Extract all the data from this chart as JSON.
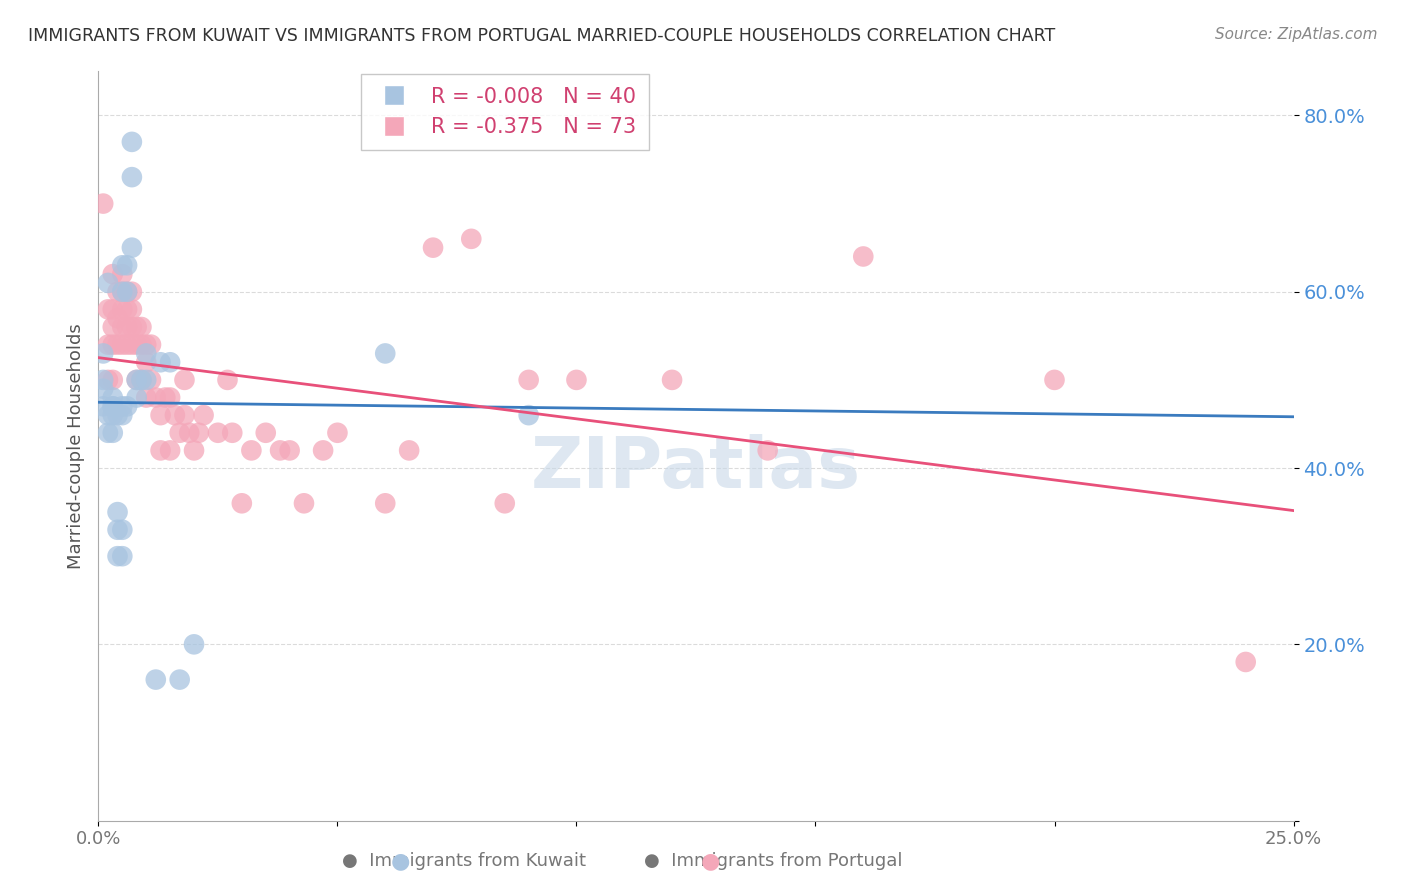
{
  "title": "IMMIGRANTS FROM KUWAIT VS IMMIGRANTS FROM PORTUGAL MARRIED-COUPLE HOUSEHOLDS CORRELATION CHART",
  "source": "Source: ZipAtlas.com",
  "ylabel": "Married-couple Households",
  "xlim": [
    0.0,
    0.25
  ],
  "ylim": [
    0.0,
    0.85
  ],
  "yticks": [
    0.0,
    0.2,
    0.4,
    0.6,
    0.8
  ],
  "ytick_labels": [
    "",
    "20.0%",
    "40.0%",
    "60.0%",
    "80.0%"
  ],
  "xticks": [
    0.0,
    0.05,
    0.1,
    0.15,
    0.2,
    0.25
  ],
  "xtick_labels": [
    "0.0%",
    "",
    "",
    "",
    "",
    "25.0%"
  ],
  "kuwait_R": -0.008,
  "kuwait_N": 40,
  "portugal_R": -0.375,
  "portugal_N": 73,
  "kuwait_color": "#a8c4e0",
  "portugal_color": "#f4a7b9",
  "kuwait_line_color": "#3a7bbf",
  "portugal_line_color": "#e8507a",
  "grid_color": "#cccccc",
  "background_color": "#ffffff",
  "watermark_text": "ZIPatlas",
  "watermark_color": "#c8d8e8",
  "kuwait_x": [
    0.001,
    0.001,
    0.001,
    0.001,
    0.002,
    0.002,
    0.002,
    0.003,
    0.003,
    0.003,
    0.003,
    0.003,
    0.004,
    0.004,
    0.004,
    0.004,
    0.005,
    0.005,
    0.005,
    0.005,
    0.005,
    0.005,
    0.006,
    0.006,
    0.006,
    0.007,
    0.007,
    0.007,
    0.008,
    0.008,
    0.009,
    0.01,
    0.01,
    0.012,
    0.013,
    0.015,
    0.017,
    0.02,
    0.06,
    0.09
  ],
  "kuwait_y": [
    0.47,
    0.49,
    0.5,
    0.53,
    0.44,
    0.46,
    0.61,
    0.44,
    0.46,
    0.47,
    0.47,
    0.48,
    0.3,
    0.33,
    0.35,
    0.46,
    0.3,
    0.33,
    0.46,
    0.47,
    0.6,
    0.63,
    0.47,
    0.6,
    0.63,
    0.65,
    0.73,
    0.77,
    0.48,
    0.5,
    0.5,
    0.5,
    0.53,
    0.16,
    0.52,
    0.52,
    0.16,
    0.2,
    0.53,
    0.46
  ],
  "portugal_x": [
    0.001,
    0.002,
    0.002,
    0.002,
    0.003,
    0.003,
    0.003,
    0.003,
    0.003,
    0.004,
    0.004,
    0.004,
    0.005,
    0.005,
    0.005,
    0.005,
    0.005,
    0.006,
    0.006,
    0.006,
    0.006,
    0.007,
    0.007,
    0.007,
    0.007,
    0.008,
    0.008,
    0.008,
    0.009,
    0.009,
    0.009,
    0.01,
    0.01,
    0.01,
    0.011,
    0.011,
    0.012,
    0.013,
    0.013,
    0.014,
    0.015,
    0.015,
    0.016,
    0.017,
    0.018,
    0.018,
    0.019,
    0.02,
    0.021,
    0.022,
    0.025,
    0.027,
    0.028,
    0.03,
    0.032,
    0.035,
    0.038,
    0.04,
    0.043,
    0.047,
    0.05,
    0.06,
    0.065,
    0.07,
    0.078,
    0.085,
    0.09,
    0.1,
    0.12,
    0.14,
    0.16,
    0.2,
    0.24
  ],
  "portugal_y": [
    0.7,
    0.5,
    0.54,
    0.58,
    0.5,
    0.54,
    0.56,
    0.58,
    0.62,
    0.54,
    0.57,
    0.6,
    0.54,
    0.56,
    0.58,
    0.6,
    0.62,
    0.54,
    0.56,
    0.58,
    0.6,
    0.54,
    0.56,
    0.58,
    0.6,
    0.5,
    0.54,
    0.56,
    0.5,
    0.54,
    0.56,
    0.48,
    0.52,
    0.54,
    0.5,
    0.54,
    0.48,
    0.42,
    0.46,
    0.48,
    0.42,
    0.48,
    0.46,
    0.44,
    0.46,
    0.5,
    0.44,
    0.42,
    0.44,
    0.46,
    0.44,
    0.5,
    0.44,
    0.36,
    0.42,
    0.44,
    0.42,
    0.42,
    0.36,
    0.42,
    0.44,
    0.36,
    0.42,
    0.65,
    0.66,
    0.36,
    0.5,
    0.5,
    0.5,
    0.42,
    0.64,
    0.5,
    0.18
  ]
}
